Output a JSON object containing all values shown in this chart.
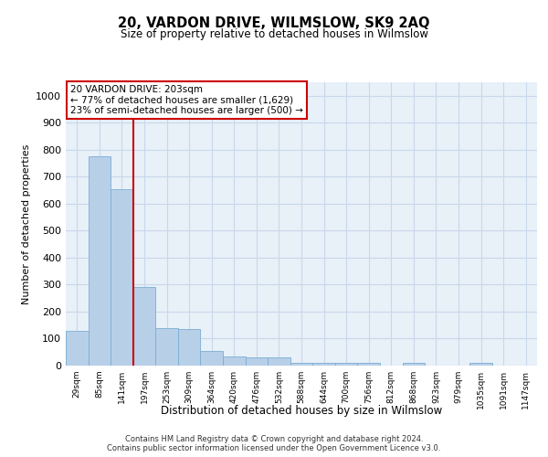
{
  "title": "20, VARDON DRIVE, WILMSLOW, SK9 2AQ",
  "subtitle": "Size of property relative to detached houses in Wilmslow",
  "xlabel": "Distribution of detached houses by size in Wilmslow",
  "ylabel": "Number of detached properties",
  "categories": [
    "29sqm",
    "85sqm",
    "141sqm",
    "197sqm",
    "253sqm",
    "309sqm",
    "364sqm",
    "420sqm",
    "476sqm",
    "532sqm",
    "588sqm",
    "644sqm",
    "700sqm",
    "756sqm",
    "812sqm",
    "868sqm",
    "923sqm",
    "979sqm",
    "1035sqm",
    "1091sqm",
    "1147sqm"
  ],
  "values": [
    130,
    775,
    655,
    290,
    140,
    135,
    55,
    35,
    30,
    30,
    10,
    10,
    10,
    10,
    0,
    10,
    0,
    0,
    10,
    0,
    0
  ],
  "bar_color": "#b8cfe8",
  "bar_edge_color": "#7aadd4",
  "vline_color": "#cc0000",
  "annotation_text": "20 VARDON DRIVE: 203sqm\n← 77% of detached houses are smaller (1,629)\n23% of semi-detached houses are larger (500) →",
  "annotation_box_color": "#ffffff",
  "annotation_box_edge": "#cc0000",
  "ylim": [
    0,
    1050
  ],
  "yticks": [
    0,
    100,
    200,
    300,
    400,
    500,
    600,
    700,
    800,
    900,
    1000
  ],
  "grid_color": "#c8d8eb",
  "background_color": "#e8f0f8",
  "footer_line1": "Contains HM Land Registry data © Crown copyright and database right 2024.",
  "footer_line2": "Contains public sector information licensed under the Open Government Licence v3.0."
}
